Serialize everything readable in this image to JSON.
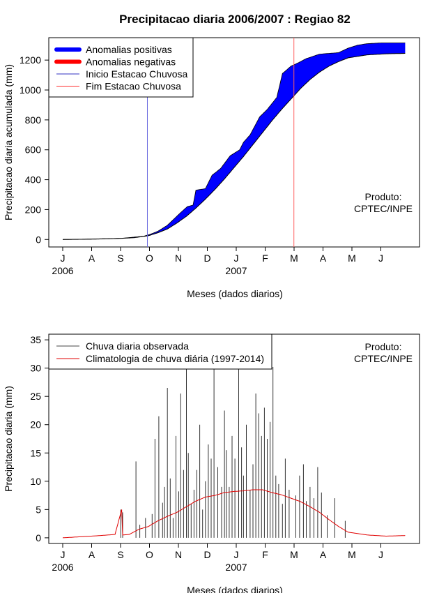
{
  "title": "Precipitacao diaria 2006/2007 : Regiao 82",
  "chart_data": [
    {
      "type": "area",
      "name": "cumulative",
      "ylabel": "Precipitacao diaria acumulada (mm)",
      "xlabel": "Meses (dados diarios)",
      "ylim": [
        -50,
        1350
      ],
      "yticks": [
        0,
        200,
        400,
        600,
        800,
        1000,
        1200
      ],
      "ytick_labels": [
        "0",
        "200",
        "400",
        "600",
        "800",
        "1000",
        "1200"
      ],
      "month_ticks": [
        "J",
        "A",
        "S",
        "O",
        "N",
        "D",
        "J",
        "F",
        "M",
        "A",
        "M",
        "J"
      ],
      "year_labels": [
        "2006",
        "2007"
      ],
      "legend": [
        "Anomalias positivas",
        "Anomalias negativas",
        "Inicio Estacao Chuvosa",
        "Fim Estacao Chuvosa"
      ],
      "note": [
        "Produto:",
        "CPTEC/INPE"
      ],
      "rainy_season_start_day": 89,
      "rainy_season_end_day": 243,
      "observed": {
        "day": [
          0,
          30,
          62,
          85,
          92,
          96,
          100,
          110,
          124,
          131,
          137,
          140,
          150,
          157,
          166,
          176,
          186,
          190,
          197,
          207,
          215,
          225,
          231,
          240,
          247,
          256,
          270,
          290,
          300,
          310,
          320,
          335,
          360
        ],
        "value": [
          0,
          3,
          8,
          22,
          35,
          45,
          55,
          95,
          180,
          220,
          230,
          330,
          340,
          430,
          475,
          560,
          600,
          650,
          700,
          820,
          870,
          950,
          1110,
          1160,
          1180,
          1210,
          1240,
          1250,
          1280,
          1300,
          1310,
          1315,
          1315
        ]
      },
      "climatology": {
        "day": [
          0,
          30,
          60,
          75,
          90,
          100,
          110,
          120,
          130,
          140,
          150,
          160,
          170,
          180,
          190,
          200,
          210,
          220,
          230,
          240,
          250,
          260,
          270,
          280,
          290,
          300,
          320,
          340,
          360
        ],
        "value": [
          0,
          2,
          7,
          12,
          25,
          45,
          70,
          110,
          155,
          210,
          270,
          335,
          405,
          480,
          555,
          635,
          715,
          795,
          870,
          940,
          1010,
          1070,
          1120,
          1160,
          1190,
          1215,
          1235,
          1242,
          1245
        ]
      }
    },
    {
      "type": "line",
      "name": "daily",
      "ylabel": "Precipitacao diaria (mm)",
      "xlabel": "Meses (dados diarios)",
      "ylim": [
        -1,
        36
      ],
      "yticks": [
        0,
        5,
        10,
        15,
        20,
        25,
        30,
        35
      ],
      "ytick_labels": [
        "0",
        "5",
        "10",
        "15",
        "20",
        "25",
        "30",
        "35"
      ],
      "month_ticks": [
        "J",
        "A",
        "S",
        "O",
        "N",
        "D",
        "J",
        "F",
        "M",
        "A",
        "M",
        "J"
      ],
      "year_labels": [
        "2006",
        "2007"
      ],
      "legend": [
        "Chuva diaria observada",
        "Climatologia de chuva diária (1997-2014)"
      ],
      "note": [
        "Produto:",
        "CPTEC/INPE"
      ],
      "observed_daily": {
        "day": [
          61,
          63,
          77,
          81,
          87,
          94,
          97,
          101,
          105,
          107,
          110,
          113,
          116,
          119,
          122,
          124,
          127,
          130,
          132,
          135,
          138,
          141,
          144,
          147,
          150,
          153,
          156,
          159,
          163,
          167,
          170,
          172,
          175,
          178,
          181,
          185,
          188,
          190,
          193,
          197,
          200,
          203,
          206,
          209,
          212,
          215,
          218,
          221,
          224,
          227,
          231,
          234,
          238,
          245,
          249,
          253,
          256,
          260,
          264,
          268,
          272,
          278,
          286,
          297
        ],
        "value": [
          5,
          4.5,
          13.5,
          2.3,
          3.5,
          4.2,
          17.5,
          21.5,
          6.2,
          9.0,
          26.5,
          10.5,
          3.5,
          18.0,
          8.2,
          25.5,
          12.0,
          31.0,
          15.0,
          6.0,
          8.5,
          12.0,
          20.0,
          5.0,
          10.0,
          16.5,
          14.0,
          30.5,
          12.5,
          9.0,
          22.5,
          15.5,
          9.0,
          18.0,
          14.0,
          30.0,
          16.0,
          11.0,
          20.0,
          8.5,
          13.0,
          25.5,
          22.0,
          18.0,
          23.0,
          17.5,
          20.5,
          30.2,
          11.0,
          9.5,
          6.0,
          14.0,
          8.5,
          7.5,
          11.0,
          13.0,
          6.5,
          9.0,
          7.0,
          12.5,
          8.0,
          4.0,
          7.0,
          3.0
        ]
      },
      "climatology_daily": {
        "day": [
          0,
          20,
          40,
          55,
          62,
          63,
          70,
          80,
          90,
          100,
          110,
          120,
          130,
          140,
          150,
          160,
          170,
          180,
          190,
          200,
          210,
          220,
          230,
          240,
          250,
          260,
          270,
          280,
          290,
          300,
          320,
          340,
          360
        ],
        "value": [
          0,
          0.2,
          0.4,
          0.6,
          5.0,
          0.5,
          0.6,
          1.5,
          2.0,
          3.0,
          3.8,
          4.5,
          5.5,
          6.5,
          7.2,
          7.5,
          8.0,
          8.2,
          8.3,
          8.5,
          8.5,
          8.0,
          7.6,
          7.0,
          6.4,
          5.5,
          4.5,
          3.2,
          2.0,
          1.0,
          0.5,
          0.3,
          0.4
        ]
      }
    }
  ]
}
